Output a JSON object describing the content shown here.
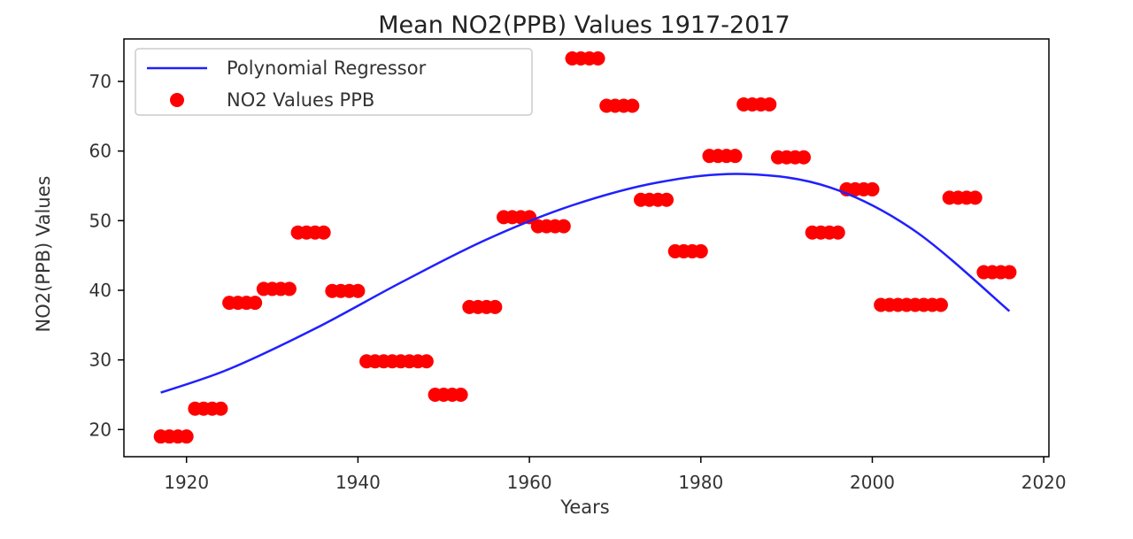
{
  "chart_data": {
    "type": "scatter",
    "title": "Mean NO2(PPB) Values 1917-2017",
    "xlabel": "Years",
    "ylabel": "NO2(PPB) Values",
    "xlim": [
      1912.7,
      2020.6
    ],
    "ylim": [
      16.1,
      76.1
    ],
    "xticks": [
      1920,
      1940,
      1960,
      1980,
      2000,
      2020
    ],
    "yticks": [
      20,
      30,
      40,
      50,
      60,
      70
    ],
    "grid": false,
    "legend": {
      "placement": "upper-left"
    },
    "colors": {
      "line": "#2020ff",
      "points": "#ff0000"
    },
    "series": [
      {
        "name": "Polynomial Regressor",
        "kind": "line",
        "x": [
          1917,
          1925,
          1935,
          1945,
          1955,
          1965,
          1975,
          1985,
          1995,
          2005,
          2016
        ],
        "y": [
          25.3,
          28.7,
          34.5,
          41.1,
          47.3,
          52.2,
          55.5,
          56.7,
          54.8,
          48.5,
          37.0
        ]
      },
      {
        "name": "NO2 Values PPB",
        "kind": "scatter",
        "x": [
          1917,
          1918,
          1919,
          1920,
          1921,
          1922,
          1923,
          1924,
          1925,
          1926,
          1927,
          1928,
          1929,
          1930,
          1931,
          1932,
          1933,
          1934,
          1935,
          1936,
          1937,
          1938,
          1939,
          1940,
          1941,
          1942,
          1943,
          1944,
          1945,
          1946,
          1947,
          1948,
          1949,
          1950,
          1951,
          1952,
          1953,
          1954,
          1955,
          1956,
          1957,
          1958,
          1959,
          1960,
          1961,
          1962,
          1963,
          1964,
          1965,
          1966,
          1967,
          1968,
          1969,
          1970,
          1971,
          1972,
          1973,
          1974,
          1975,
          1976,
          1977,
          1978,
          1979,
          1980,
          1981,
          1982,
          1983,
          1984,
          1985,
          1986,
          1987,
          1988,
          1989,
          1990,
          1991,
          1992,
          1993,
          1994,
          1995,
          1996,
          1997,
          1998,
          1999,
          2000,
          2001,
          2002,
          2003,
          2004,
          2005,
          2006,
          2007,
          2008,
          2009,
          2010,
          2011,
          2012,
          2013,
          2014,
          2015,
          2016
        ],
        "y": [
          19,
          19,
          19,
          19,
          23,
          23,
          23,
          23,
          38.2,
          38.2,
          38.2,
          38.2,
          40.2,
          40.2,
          40.2,
          40.2,
          48.3,
          48.3,
          48.3,
          48.3,
          39.9,
          39.9,
          39.9,
          39.9,
          29.8,
          29.8,
          29.8,
          29.8,
          29.8,
          29.8,
          29.8,
          29.8,
          25,
          25,
          25,
          25,
          37.6,
          37.6,
          37.6,
          37.6,
          50.5,
          50.5,
          50.5,
          50.5,
          49.2,
          49.2,
          49.2,
          49.2,
          73.3,
          73.3,
          73.3,
          73.3,
          66.5,
          66.5,
          66.5,
          66.5,
          53,
          53,
          53,
          53,
          45.6,
          45.6,
          45.6,
          45.6,
          59.3,
          59.3,
          59.3,
          59.3,
          66.7,
          66.7,
          66.7,
          66.7,
          59.1,
          59.1,
          59.1,
          59.1,
          48.3,
          48.3,
          48.3,
          48.3,
          54.5,
          54.5,
          54.5,
          54.5,
          37.9,
          37.9,
          37.9,
          37.9,
          37.9,
          37.9,
          37.9,
          37.9,
          53.3,
          53.3,
          53.3,
          53.3,
          42.6,
          42.6,
          42.6,
          42.6
        ]
      }
    ]
  }
}
